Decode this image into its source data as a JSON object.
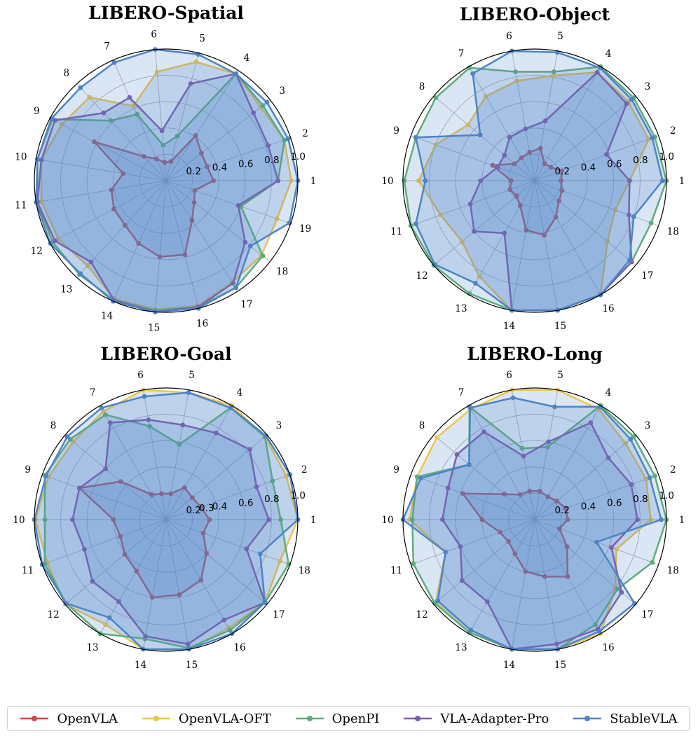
{
  "chart_data": [
    {
      "type": "radar",
      "title": "LIBERO-Spatial",
      "categories": [
        "1",
        "2",
        "3",
        "4",
        "5",
        "6",
        "7",
        "8",
        "9",
        "10",
        "11",
        "12",
        "13",
        "14",
        "15",
        "16",
        "17",
        "18",
        "19"
      ],
      "rlim": [
        0,
        1.0
      ],
      "rticks": [
        "0.2",
        "0.4",
        "0.6",
        "0.8",
        "1.0"
      ],
      "series": [
        {
          "name": "OpenVLA",
          "values": [
            0.36,
            0.33,
            0.34,
            0.41,
            0.15,
            0.14,
            0.18,
            0.25,
            0.62,
            0.33,
            0.42,
            0.45,
            0.46,
            0.52,
            0.58,
            0.58,
            0.36,
            0.27,
            0.23
          ]
        },
        {
          "name": "OpenVLA-OFT",
          "values": [
            0.95,
            0.95,
            0.91,
            0.97,
            0.93,
            0.83,
            0.62,
            0.86,
            0.9,
            0.96,
            0.96,
            0.93,
            0.88,
            0.98,
            0.98,
            0.98,
            0.92,
            0.92,
            0.89
          ]
        },
        {
          "name": "OpenPI",
          "values": [
            0.85,
            0.95,
            0.93,
            0.97,
            0.35,
            0.27,
            0.55,
            0.62,
            0.98,
            0.99,
            0.99,
            0.98,
            0.97,
            0.99,
            0.99,
            0.99,
            0.97,
            0.93,
            0.6
          ]
        },
        {
          "name": "VLA-Adapter-Pro",
          "values": [
            0.85,
            0.82,
            0.84,
            0.97,
            0.76,
            0.38,
            0.69,
            0.7,
            0.96,
            0.96,
            0.99,
            0.96,
            0.84,
            0.99,
            1.0,
            0.99,
            0.93,
            0.76,
            0.58
          ]
        },
        {
          "name": "StableVLA",
          "values": [
            1.0,
            0.98,
            0.97,
            0.97,
            0.99,
            1.0,
            0.98,
            0.96,
            0.99,
            0.99,
            1.0,
            1.0,
            0.96,
            1.0,
            1.0,
            1.0,
            0.97,
            0.81,
            0.99
          ]
        }
      ]
    },
    {
      "type": "radar",
      "title": "LIBERO-Object",
      "categories": [
        "1",
        "2",
        "3",
        "4",
        "5",
        "6",
        "7",
        "8",
        "9",
        "10",
        "11",
        "12",
        "13",
        "14",
        "15",
        "16",
        "17",
        "18"
      ],
      "rlim": [
        0,
        1.0
      ],
      "rticks": [
        "0.2",
        "0.4",
        "0.6",
        "0.8",
        "1.0"
      ],
      "series": [
        {
          "name": "OpenVLA",
          "values": [
            0.2,
            0.22,
            0.16,
            0.15,
            0.25,
            0.22,
            0.2,
            0.2,
            0.34,
            0.18,
            0.2,
            0.18,
            0.22,
            0.38,
            0.42,
            0.32,
            0.24,
            0.22
          ]
        },
        {
          "name": "OpenVLA-OFT",
          "values": [
            0.72,
            0.92,
            0.93,
            0.95,
            0.81,
            0.77,
            0.74,
            0.66,
            0.8,
            0.88,
            0.76,
            0.72,
            0.84,
            1.0,
            1.0,
            1.0,
            0.72,
            0.65
          ]
        },
        {
          "name": "OpenPI",
          "values": [
            1.0,
            0.97,
            0.98,
            1.0,
            0.84,
            0.84,
            0.99,
            0.98,
            0.96,
            0.99,
            1.0,
            1.0,
            0.99,
            1.0,
            1.0,
            1.0,
            0.96,
            0.94
          ]
        },
        {
          "name": "VLA-Adapter-Pro",
          "values": [
            0.72,
            0.58,
            0.91,
            0.95,
            0.46,
            0.4,
            0.38,
            0.3,
            0.3,
            0.41,
            0.52,
            0.6,
            0.46,
            1.0,
            1.0,
            1.0,
            0.96,
            0.76
          ]
        },
        {
          "name": "StableVLA",
          "values": [
            0.97,
            0.95,
            0.96,
            0.99,
            0.99,
            1.0,
            0.94,
            0.54,
            0.96,
            0.83,
            0.96,
            0.99,
            0.9,
            1.0,
            1.0,
            1.0,
            0.94,
            0.8
          ]
        }
      ]
    },
    {
      "type": "radar",
      "title": "LIBERO-Goal",
      "categories": [
        "1",
        "2",
        "3",
        "4",
        "5",
        "6",
        "7",
        "8",
        "9",
        "10",
        "11",
        "12",
        "13",
        "14",
        "15",
        "16",
        "17",
        "18"
      ],
      "rlim": [
        0,
        1.0
      ],
      "rticks": [
        "0.2",
        "0.3",
        "0.4",
        "0.6",
        "0.8",
        "1.0"
      ],
      "series": [
        {
          "name": "OpenVLA",
          "values": [
            0.33,
            0.28,
            0.26,
            0.28,
            0.2,
            0.2,
            0.22,
            0.45,
            0.7,
            0.4,
            0.37,
            0.41,
            0.45,
            0.6,
            0.58,
            0.53,
            0.4,
            0.3
          ]
        },
        {
          "name": "OpenVLA-OFT",
          "values": [
            1.0,
            0.97,
            0.98,
            1.0,
            0.98,
            1.0,
            0.95,
            0.92,
            0.95,
            0.99,
            0.96,
            1.0,
            0.92,
            1.0,
            1.0,
            0.95,
            0.98,
            0.92
          ]
        },
        {
          "name": "OpenPI",
          "values": [
            0.87,
            0.86,
            0.98,
            0.98,
            0.58,
            0.72,
            0.92,
            0.95,
            0.98,
            0.92,
            0.98,
            0.99,
            1.0,
            0.92,
            0.99,
            0.97,
            0.98,
            0.99
          ]
        },
        {
          "name": "VLA-Adapter-Pro",
          "values": [
            0.78,
            0.73,
            0.83,
            0.76,
            0.73,
            0.77,
            0.85,
            0.6,
            0.7,
            0.71,
            0.66,
            0.73,
            0.72,
            0.9,
            0.96,
            0.88,
            0.98,
            0.65
          ]
        },
        {
          "name": "StableVLA",
          "values": [
            1.0,
            1.0,
            0.99,
            0.98,
            0.98,
            0.95,
            0.98,
            0.98,
            0.97,
            1.0,
            1.0,
            0.99,
            0.86,
            1.0,
            1.0,
            1.0,
            0.98,
            0.76
          ]
        }
      ]
    },
    {
      "type": "radar",
      "title": "LIBERO-Long",
      "categories": [
        "1",
        "2",
        "3",
        "4",
        "5",
        "6",
        "7",
        "8",
        "9",
        "10",
        "11",
        "12",
        "13",
        "14",
        "15",
        "16",
        "17",
        "18"
      ],
      "rlim": [
        0,
        1.0
      ],
      "rticks": [
        "0.2",
        "0.4",
        "0.6",
        "0.8",
        "1.0"
      ],
      "series": [
        {
          "name": "OpenVLA",
          "values": [
            0.25,
            0.25,
            0.22,
            0.2,
            0.22,
            0.22,
            0.22,
            0.3,
            0.58,
            0.4,
            0.28,
            0.26,
            0.3,
            0.4,
            0.44,
            0.5,
            0.32,
            0.2
          ]
        },
        {
          "name": "OpenVLA-OFT",
          "values": [
            0.88,
            0.9,
            0.9,
            0.97,
            1.0,
            1.0,
            0.97,
            0.97,
            0.95,
            0.95,
            0.72,
            0.98,
            0.99,
            1.0,
            1.0,
            1.0,
            0.8,
            0.66
          ]
        },
        {
          "name": "OpenPI",
          "values": [
            1.0,
            0.97,
            0.98,
            1.0,
            0.56,
            0.55,
            0.99,
            0.65,
            0.95,
            0.93,
            0.98,
            0.99,
            0.99,
            1.0,
            1.0,
            0.92,
            0.82,
            0.95
          ]
        },
        {
          "name": "VLA-Adapter-Pro",
          "values": [
            0.78,
            0.78,
            0.73,
            0.85,
            0.6,
            0.49,
            0.77,
            0.77,
            0.7,
            0.7,
            0.6,
            0.72,
            0.72,
            1.0,
            0.96,
            0.96,
            0.86,
            0.62
          ]
        },
        {
          "name": "StableVLA",
          "values": [
            0.96,
            0.93,
            0.95,
            0.99,
            0.87,
            0.94,
            0.98,
            0.65,
            0.92,
            1.0,
            0.72,
            0.96,
            0.97,
            1.0,
            1.0,
            0.98,
            0.99,
            0.5
          ]
        }
      ]
    }
  ],
  "legend": {
    "items": [
      {
        "name": "OpenVLA",
        "color": "#d64541"
      },
      {
        "name": "OpenVLA-OFT",
        "color": "#eec44c"
      },
      {
        "name": "OpenPI",
        "color": "#5aae7a"
      },
      {
        "name": "VLA-Adapter-Pro",
        "color": "#7c5fb0"
      },
      {
        "name": "StableVLA",
        "color": "#4c84c7"
      }
    ]
  },
  "colors": {
    "fill": "#4c84c7",
    "grid": "#b4b4b4",
    "spine": "#000000"
  }
}
